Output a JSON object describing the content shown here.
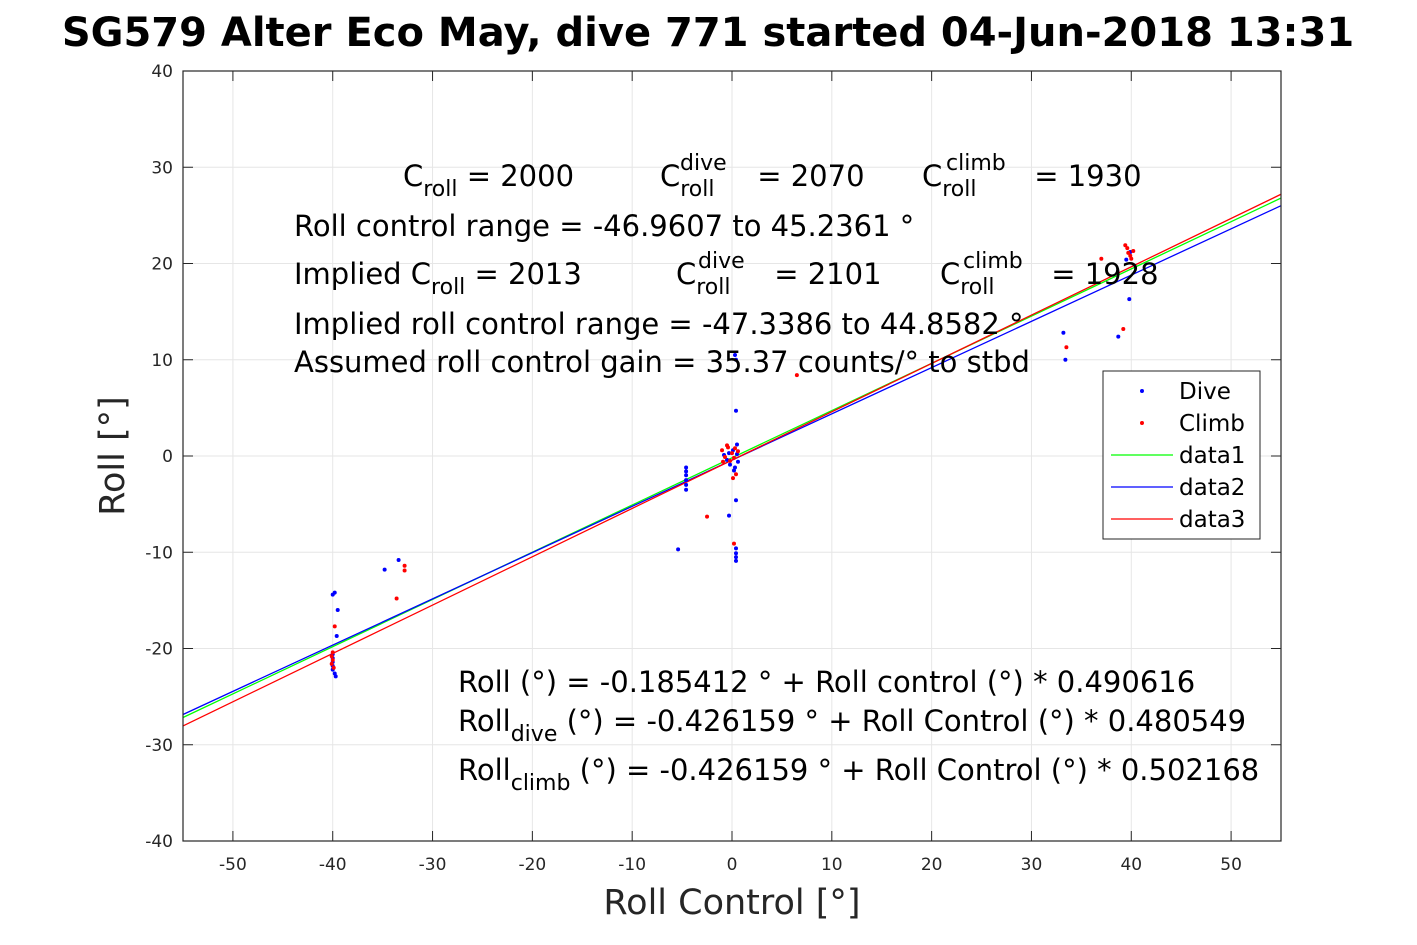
{
  "chart_data": {
    "type": "scatter",
    "title": "SG579 Alter Eco May, dive 771 started 04-Jun-2018 13:31",
    "xlabel": "Roll Control [°]",
    "ylabel": "Roll [°]",
    "xlim": [
      -55,
      55
    ],
    "ylim": [
      -40,
      40
    ],
    "xticks": [
      -50,
      -40,
      -30,
      -20,
      -10,
      0,
      10,
      20,
      30,
      40,
      50
    ],
    "yticks": [
      -40,
      -30,
      -20,
      -10,
      0,
      10,
      20,
      30,
      40
    ],
    "grid": true,
    "legend_position": "right",
    "legend": [
      {
        "label": "Dive",
        "color": "#0000ff",
        "style": "marker"
      },
      {
        "label": "Climb",
        "color": "#ff0000",
        "style": "marker"
      },
      {
        "label": "data1",
        "color": "#00ff00",
        "style": "line"
      },
      {
        "label": "data2",
        "color": "#0000ff",
        "style": "line"
      },
      {
        "label": "data3",
        "color": "#ff0000",
        "style": "line"
      }
    ],
    "series": [
      {
        "name": "Dive",
        "type": "scatter",
        "color": "#0000ff",
        "points": [
          [
            -40,
            -14.4
          ],
          [
            -39.8,
            -14.2
          ],
          [
            -39.5,
            -16
          ],
          [
            -39.6,
            -18.7
          ],
          [
            -40,
            -20.6
          ],
          [
            -40,
            -21
          ],
          [
            -40,
            -21.4
          ],
          [
            -40,
            -21.8
          ],
          [
            -40,
            -22.2
          ],
          [
            -39.8,
            -22.6
          ],
          [
            -39.7,
            -22.9
          ],
          [
            -34.8,
            -11.8
          ],
          [
            -33.4,
            -10.8
          ],
          [
            -5.4,
            -9.7
          ],
          [
            -4.6,
            -1.2
          ],
          [
            -4.6,
            -1.6
          ],
          [
            -4.6,
            -2
          ],
          [
            -4.6,
            -2.5
          ],
          [
            -4.6,
            -3
          ],
          [
            -4.6,
            -3.5
          ],
          [
            -0.3,
            -6.2
          ],
          [
            0.4,
            -4.6
          ],
          [
            0.4,
            -9.6
          ],
          [
            0.4,
            -10.1
          ],
          [
            0.4,
            -10.5
          ],
          [
            0.4,
            -10.9
          ],
          [
            0.4,
            4.7
          ],
          [
            0.4,
            10
          ],
          [
            0.3,
            10.5
          ],
          [
            -0.8,
            0.1
          ],
          [
            -0.5,
            -0.4
          ],
          [
            -0.2,
            -0.9
          ],
          [
            0.1,
            0.6
          ],
          [
            0.3,
            -1.2
          ],
          [
            0.5,
            0.2
          ],
          [
            0.6,
            -0.6
          ],
          [
            -0.3,
            0.3
          ],
          [
            0.2,
            -1.5
          ],
          [
            0.5,
            1.2
          ],
          [
            33.2,
            12.8
          ],
          [
            33.4,
            10
          ],
          [
            38.7,
            12.4
          ],
          [
            39.8,
            16.3
          ],
          [
            39.5,
            20.4
          ],
          [
            39.9,
            21.2
          ]
        ]
      },
      {
        "name": "Climb",
        "type": "scatter",
        "color": "#ff0000",
        "points": [
          [
            -39.8,
            -17.7
          ],
          [
            -40,
            -20.4
          ],
          [
            -40.1,
            -20.8
          ],
          [
            -40,
            -21.2
          ],
          [
            -40.1,
            -21.6
          ],
          [
            -39.9,
            -22
          ],
          [
            -33.6,
            -14.8
          ],
          [
            -32.8,
            -11.4
          ],
          [
            -32.8,
            -11.9
          ],
          [
            -2.5,
            -6.3
          ],
          [
            0.2,
            -9.1
          ],
          [
            6.5,
            8.4
          ],
          [
            -1,
            0.6
          ],
          [
            -0.7,
            -0.1
          ],
          [
            -0.4,
            0.9
          ],
          [
            -0.2,
            -0.5
          ],
          [
            0,
            0.3
          ],
          [
            0.2,
            -0.2
          ],
          [
            -0.5,
            1.1
          ],
          [
            0.3,
            0.8
          ],
          [
            0.4,
            -1.9
          ],
          [
            0.1,
            -2.3
          ],
          [
            -0.9,
            -0.6
          ],
          [
            0.6,
            0.5
          ],
          [
            33.5,
            11.3
          ],
          [
            37,
            20.5
          ],
          [
            39.2,
            13.2
          ],
          [
            39.4,
            21.9
          ],
          [
            39.6,
            21.6
          ],
          [
            39.7,
            21.1
          ],
          [
            39.9,
            20.8
          ],
          [
            40,
            20.5
          ],
          [
            40.2,
            21.3
          ]
        ]
      },
      {
        "name": "data1",
        "type": "line",
        "color": "#00ff00",
        "intercept": -0.185412,
        "slope": 0.490616
      },
      {
        "name": "data2",
        "type": "line",
        "color": "#0000ff",
        "intercept": -0.426159,
        "slope": 0.480549
      },
      {
        "name": "data3",
        "type": "line",
        "color": "#ff0000",
        "intercept": -0.426159,
        "slope": 0.502168
      }
    ]
  },
  "annotations": {
    "c_roll": {
      "base": "C",
      "sub": "roll",
      "value": " = 2000"
    },
    "c_roll_dive": {
      "base": "C",
      "sub": "roll",
      "sup": "dive",
      "value": " = 2070"
    },
    "c_roll_climb": {
      "base": "C",
      "sub": "roll",
      "sup": "climb",
      "value": " = 1930"
    },
    "range": "Roll control range = -46.9607 to 45.2361 °",
    "implied_c_roll": {
      "prefix": "Implied C",
      "sub": "roll",
      "value": " = 2013"
    },
    "implied_c_roll_dive": {
      "base": "C",
      "sub": "roll",
      "sup": "dive",
      "value": " = 2101"
    },
    "implied_c_roll_climb": {
      "base": "C",
      "sub": "roll",
      "sup": "climb",
      "value": " = 1928"
    },
    "implied_range": "Implied roll control range = -47.3386 to 44.8582 °",
    "gain": "Assumed roll control gain = 35.37 counts/° to stbd",
    "fit_all": "Roll (°) = -0.185412 ° + Roll control (°) * 0.490616",
    "fit_dive": {
      "base": "Roll",
      "sub": "dive",
      "rest": " (°) = -0.426159 ° + Roll Control (°) * 0.480549"
    },
    "fit_climb": {
      "base": "Roll",
      "sub": "climb",
      "rest": " (°) = -0.426159 ° + Roll Control (°) * 0.502168"
    }
  }
}
